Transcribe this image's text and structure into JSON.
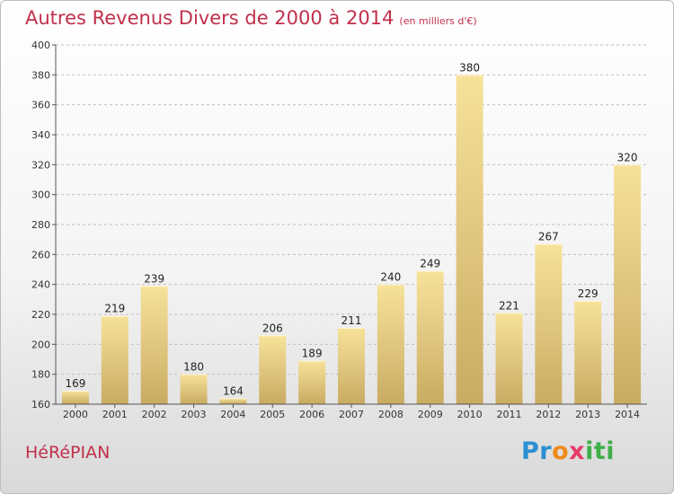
{
  "header": {
    "title": "Autres Revenus Divers de 2000 à 2014",
    "subtitle": "(en milliers d'€)"
  },
  "footer": {
    "commune": "HéRéPIAN",
    "logo": [
      "Pr",
      "o",
      "x",
      "iti"
    ]
  },
  "colors": {
    "title": "#c0304b",
    "bar_light": "#f7e29a",
    "bar_dark": "#c9ab63"
  },
  "chart_data": {
    "type": "bar",
    "title": "Autres Revenus Divers de 2000 à 2014",
    "subtitle": "(en milliers d'€)",
    "categories": [
      "2000",
      "2001",
      "2002",
      "2003",
      "2004",
      "2005",
      "2006",
      "2007",
      "2008",
      "2009",
      "2010",
      "2011",
      "2012",
      "2013",
      "2014"
    ],
    "values": [
      169,
      219,
      239,
      180,
      164,
      206,
      189,
      211,
      240,
      249,
      380,
      221,
      267,
      229,
      320
    ],
    "ylim": [
      160,
      400
    ],
    "yticks": [
      160,
      180,
      200,
      220,
      240,
      260,
      280,
      300,
      320,
      340,
      360,
      380,
      400
    ],
    "grid": "horizontal-dashed"
  }
}
